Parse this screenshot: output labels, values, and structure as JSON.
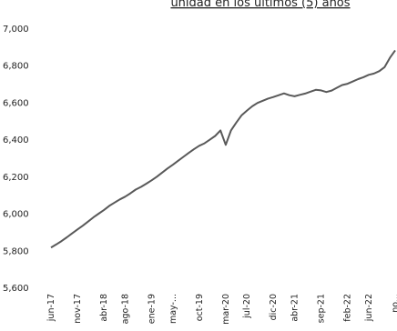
{
  "title_partial": "unidad en los últimos (5) años",
  "chart_data": {
    "type": "line",
    "title": "unidad en los últimos (5) años",
    "ylim": [
      5600,
      7000
    ],
    "yticks": [
      "7,000",
      "6,800",
      "6,600",
      "6,400",
      "6,200",
      "6,000",
      "5,800",
      "5,600"
    ],
    "ytick_values": [
      7000,
      6800,
      6600,
      6400,
      6200,
      6000,
      5800,
      5600
    ],
    "x_tick_labels": [
      "jun-17",
      "nov-17",
      "abr-18",
      "ago-18",
      "ene-19",
      "may-...",
      "oct-19",
      "mar-20",
      "jul-20",
      "dic-20",
      "abr-21",
      "sep-21",
      "feb-22",
      "jun-22",
      "no..."
    ],
    "x_tick_index": [
      0,
      5,
      10,
      14,
      19,
      23,
      28,
      33,
      37,
      42,
      46,
      51,
      56,
      60,
      65
    ],
    "grid": false,
    "legend": "none",
    "series": [
      {
        "color": "#595959",
        "x": [
          "jun-17",
          "jul-17",
          "ago-17",
          "sep-17",
          "oct-17",
          "nov-17",
          "dic-17",
          "ene-18",
          "feb-18",
          "mar-18",
          "abr-18",
          "may-18",
          "jun-18",
          "jul-18",
          "ago-18",
          "sep-18",
          "oct-18",
          "nov-18",
          "dic-18",
          "ene-19",
          "feb-19",
          "mar-19",
          "abr-19",
          "may-19",
          "jun-19",
          "jul-19",
          "ago-19",
          "sep-19",
          "oct-19",
          "nov-19",
          "dic-19",
          "ene-20",
          "feb-20",
          "mar-20",
          "abr-20",
          "may-20",
          "jun-20",
          "jul-20",
          "ago-20",
          "sep-20",
          "oct-20",
          "nov-20",
          "dic-20",
          "ene-21",
          "feb-21",
          "mar-21",
          "abr-21",
          "may-21",
          "jun-21",
          "jul-21",
          "ago-21",
          "sep-21",
          "oct-21",
          "nov-21",
          "dic-21",
          "ene-22",
          "feb-22",
          "mar-22",
          "abr-22",
          "may-22",
          "jun-22",
          "jul-22",
          "ago-22",
          "sep-22",
          "oct-22",
          "nov-22"
        ],
        "values": [
          5815,
          5832,
          5850,
          5870,
          5892,
          5913,
          5933,
          5955,
          5978,
          5998,
          6018,
          6040,
          6058,
          6075,
          6090,
          6108,
          6128,
          6143,
          6160,
          6178,
          6198,
          6220,
          6242,
          6262,
          6284,
          6305,
          6326,
          6346,
          6365,
          6378,
          6398,
          6418,
          6448,
          6370,
          6448,
          6490,
          6530,
          6555,
          6578,
          6596,
          6608,
          6620,
          6628,
          6638,
          6648,
          6638,
          6632,
          6640,
          6647,
          6657,
          6667,
          6664,
          6655,
          6663,
          6678,
          6693,
          6700,
          6712,
          6725,
          6735,
          6748,
          6755,
          6768,
          6790,
          6840,
          6880
        ]
      }
    ]
  }
}
